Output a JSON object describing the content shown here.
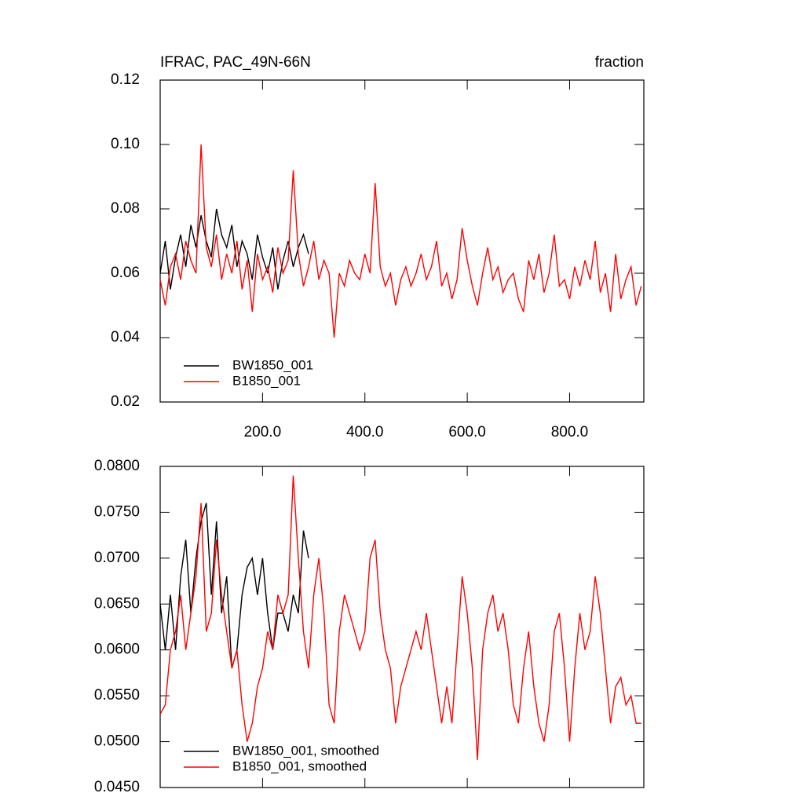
{
  "chart_data": [
    {
      "type": "line",
      "title": "IFRAC, PAC_49N-66N",
      "units": "fraction",
      "x": [
        0,
        10,
        20,
        30,
        40,
        50,
        60,
        70,
        80,
        90,
        100,
        110,
        120,
        130,
        140,
        150,
        160,
        170,
        180,
        190,
        200,
        210,
        220,
        230,
        240,
        250,
        260,
        270,
        280,
        290,
        300,
        310,
        320,
        330,
        340,
        350,
        360,
        370,
        380,
        390,
        400,
        410,
        420,
        430,
        440,
        450,
        460,
        470,
        480,
        490,
        500,
        510,
        520,
        530,
        540,
        550,
        560,
        570,
        580,
        590,
        600,
        610,
        620,
        630,
        640,
        650,
        660,
        670,
        680,
        690,
        700,
        710,
        720,
        730,
        740,
        750,
        760,
        770,
        780,
        790,
        800,
        810,
        820,
        830,
        840,
        850,
        860,
        870,
        880,
        890,
        900,
        910,
        920,
        930,
        940
      ],
      "series": [
        {
          "name": "BW1850_001",
          "color": "#000000",
          "values": [
            0.06,
            0.07,
            0.055,
            0.065,
            0.072,
            0.062,
            0.075,
            0.068,
            0.078,
            0.07,
            0.065,
            0.08,
            0.072,
            0.068,
            0.075,
            0.062,
            0.07,
            0.066,
            0.058,
            0.072,
            0.065,
            0.06,
            0.068,
            0.055,
            0.064,
            0.07,
            0.062,
            0.068,
            0.072,
            0.066,
            null,
            null,
            null,
            null,
            null,
            null,
            null,
            null,
            null,
            null,
            null,
            null,
            null,
            null,
            null,
            null,
            null,
            null,
            null,
            null,
            null,
            null,
            null,
            null,
            null,
            null,
            null,
            null,
            null,
            null,
            null,
            null,
            null,
            null,
            null,
            null,
            null,
            null,
            null,
            null,
            null,
            null,
            null,
            null,
            null,
            null,
            null,
            null,
            null,
            null,
            null,
            null,
            null,
            null,
            null,
            null,
            null,
            null,
            null,
            null,
            null,
            null,
            null,
            null,
            null
          ]
        },
        {
          "name": "B1850_001",
          "color": "#ff0000",
          "values": [
            0.058,
            0.05,
            0.062,
            0.066,
            0.058,
            0.07,
            0.064,
            0.06,
            0.1,
            0.068,
            0.062,
            0.072,
            0.058,
            0.066,
            0.06,
            0.07,
            0.055,
            0.064,
            0.048,
            0.066,
            0.058,
            0.062,
            0.054,
            0.068,
            0.06,
            0.064,
            0.092,
            0.066,
            0.056,
            0.062,
            0.07,
            0.058,
            0.064,
            0.06,
            0.04,
            0.06,
            0.056,
            0.064,
            0.06,
            0.058,
            0.066,
            0.06,
            0.088,
            0.062,
            0.056,
            0.06,
            0.05,
            0.058,
            0.062,
            0.056,
            0.06,
            0.066,
            0.058,
            0.062,
            0.07,
            0.056,
            0.06,
            0.052,
            0.058,
            0.074,
            0.064,
            0.056,
            0.05,
            0.06,
            0.068,
            0.058,
            0.062,
            0.054,
            0.058,
            0.06,
            0.052,
            0.048,
            0.064,
            0.058,
            0.066,
            0.054,
            0.06,
            0.072,
            0.056,
            0.058,
            0.052,
            0.062,
            0.056,
            0.064,
            0.058,
            0.07,
            0.054,
            0.06,
            0.048,
            0.066,
            0.052,
            0.058,
            0.062,
            0.05,
            0.056
          ]
        }
      ],
      "xlim": [
        0,
        945
      ],
      "xticks": [
        {
          "value": 200,
          "label": "200.0"
        },
        {
          "value": 400,
          "label": "400.0"
        },
        {
          "value": 600,
          "label": "600.0"
        },
        {
          "value": 800,
          "label": "800.0"
        }
      ],
      "xtick_labels": true,
      "ylim": [
        0.02,
        0.12
      ],
      "yticks": [
        0.02,
        0.04,
        0.06,
        0.08,
        {
          "value": 0.1,
          "label": "0.10"
        },
        0.12
      ],
      "legend": "lower left"
    },
    {
      "type": "line",
      "x": [
        0,
        10,
        20,
        30,
        40,
        50,
        60,
        70,
        80,
        90,
        100,
        110,
        120,
        130,
        140,
        150,
        160,
        170,
        180,
        190,
        200,
        210,
        220,
        230,
        240,
        250,
        260,
        270,
        280,
        290,
        300,
        310,
        320,
        330,
        340,
        350,
        360,
        370,
        380,
        390,
        400,
        410,
        420,
        430,
        440,
        450,
        460,
        470,
        480,
        490,
        500,
        510,
        520,
        530,
        540,
        550,
        560,
        570,
        580,
        590,
        600,
        610,
        620,
        630,
        640,
        650,
        660,
        670,
        680,
        690,
        700,
        710,
        720,
        730,
        740,
        750,
        760,
        770,
        780,
        790,
        800,
        810,
        820,
        830,
        840,
        850,
        860,
        870,
        880,
        890,
        900,
        910,
        920,
        930,
        940
      ],
      "series": [
        {
          "name": "BW1850_001, smoothed",
          "color": "#000000",
          "values": [
            0.065,
            0.06,
            0.066,
            0.06,
            0.068,
            0.072,
            0.064,
            0.07,
            0.074,
            0.076,
            0.066,
            0.074,
            0.064,
            0.068,
            0.058,
            0.06,
            0.066,
            0.069,
            0.07,
            0.066,
            0.07,
            0.064,
            0.06,
            0.064,
            0.064,
            0.062,
            0.066,
            0.064,
            0.073,
            0.07,
            null,
            null,
            null,
            null,
            null,
            null,
            null,
            null,
            null,
            null,
            null,
            null,
            null,
            null,
            null,
            null,
            null,
            null,
            null,
            null,
            null,
            null,
            null,
            null,
            null,
            null,
            null,
            null,
            null,
            null,
            null,
            null,
            null,
            null,
            null,
            null,
            null,
            null,
            null,
            null,
            null,
            null,
            null,
            null,
            null,
            null,
            null,
            null,
            null,
            null,
            null,
            null,
            null,
            null,
            null,
            null,
            null,
            null,
            null,
            null,
            null,
            null,
            null,
            null,
            null
          ]
        },
        {
          "name": "B1850_001, smoothed",
          "color": "#ff0000",
          "values": [
            0.053,
            0.054,
            0.06,
            0.062,
            0.066,
            0.06,
            0.064,
            0.068,
            0.076,
            0.062,
            0.064,
            0.072,
            0.066,
            0.062,
            0.058,
            0.06,
            0.054,
            0.05,
            0.052,
            0.056,
            0.058,
            0.062,
            0.06,
            0.066,
            0.064,
            0.066,
            0.079,
            0.07,
            0.062,
            0.058,
            0.066,
            0.07,
            0.064,
            0.054,
            0.052,
            0.062,
            0.066,
            0.064,
            0.062,
            0.06,
            0.062,
            0.07,
            0.072,
            0.064,
            0.06,
            0.058,
            0.052,
            0.056,
            0.058,
            0.06,
            0.062,
            0.06,
            0.064,
            0.06,
            0.056,
            0.052,
            0.056,
            0.052,
            0.06,
            0.068,
            0.064,
            0.058,
            0.048,
            0.06,
            0.064,
            0.066,
            0.062,
            0.064,
            0.06,
            0.054,
            0.052,
            0.058,
            0.062,
            0.056,
            0.052,
            0.05,
            0.054,
            0.062,
            0.064,
            0.058,
            0.05,
            0.058,
            0.064,
            0.06,
            0.062,
            0.068,
            0.064,
            0.058,
            0.052,
            0.056,
            0.057,
            0.054,
            0.055,
            0.052,
            0.052
          ]
        }
      ],
      "xlim": [
        0,
        945
      ],
      "xticks": [
        200,
        400,
        600,
        800
      ],
      "xtick_labels": false,
      "ylim": [
        0.045,
        0.08
      ],
      "yticks": [
        {
          "value": 0.045,
          "label": "0.0450"
        },
        {
          "value": 0.05,
          "label": "0.0500"
        },
        {
          "value": 0.055,
          "label": "0.0550"
        },
        {
          "value": 0.06,
          "label": "0.0600"
        },
        {
          "value": 0.065,
          "label": "0.0650"
        },
        {
          "value": 0.07,
          "label": "0.0700"
        },
        {
          "value": 0.075,
          "label": "0.0750"
        },
        {
          "value": 0.08,
          "label": "0.0800"
        }
      ],
      "legend": "lower left"
    }
  ]
}
